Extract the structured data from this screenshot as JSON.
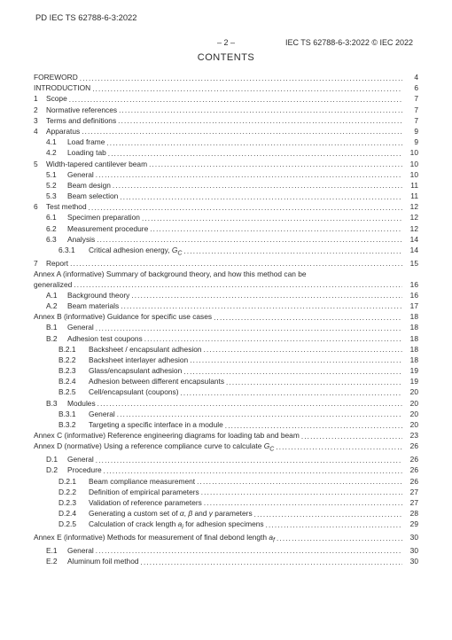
{
  "doc_id": "PD IEC TS 62788-6-3:2022",
  "header_center": "– 2 –",
  "header_right": "IEC TS 62788-6-3:2022 © IEC 2022",
  "contents_title": "CONTENTS",
  "dots": "........................................................................................................................................................................",
  "toc": [
    {
      "indent": 0,
      "num": "",
      "numClass": "",
      "title": "FOREWORD",
      "page": "4"
    },
    {
      "indent": 0,
      "num": "",
      "numClass": "",
      "title": "INTRODUCTION",
      "page": "6"
    },
    {
      "indent": 0,
      "num": "1",
      "numClass": "n1",
      "title": "Scope",
      "page": "7"
    },
    {
      "indent": 0,
      "num": "2",
      "numClass": "n1",
      "title": "Normative references",
      "page": "7"
    },
    {
      "indent": 0,
      "num": "3",
      "numClass": "n1",
      "title": "Terms and definitions",
      "page": "7"
    },
    {
      "indent": 0,
      "num": "4",
      "numClass": "n1",
      "title": "Apparatus",
      "page": "9"
    },
    {
      "indent": 1,
      "num": "4.1",
      "numClass": "n2",
      "title": "Load frame",
      "page": "9"
    },
    {
      "indent": 1,
      "num": "4.2",
      "numClass": "n2",
      "title": "Loading tab",
      "page": "10"
    },
    {
      "indent": 0,
      "num": "5",
      "numClass": "n1",
      "title": "Width-tapered cantilever beam",
      "page": "10"
    },
    {
      "indent": 1,
      "num": "5.1",
      "numClass": "n2",
      "title": "General",
      "page": "10"
    },
    {
      "indent": 1,
      "num": "5.2",
      "numClass": "n2",
      "title": "Beam design",
      "page": "11"
    },
    {
      "indent": 1,
      "num": "5.3",
      "numClass": "n2",
      "title": "Beam selection",
      "page": "11"
    },
    {
      "indent": 0,
      "num": "6",
      "numClass": "n1",
      "title": "Test method",
      "page": "12"
    },
    {
      "indent": 1,
      "num": "6.1",
      "numClass": "n2",
      "title": "Specimen preparation",
      "page": "12"
    },
    {
      "indent": 1,
      "num": "6.2",
      "numClass": "n2",
      "title": "Measurement procedure",
      "page": "12"
    },
    {
      "indent": 1,
      "num": "6.3",
      "numClass": "n2",
      "title": "Analysis",
      "page": "14"
    },
    {
      "indent": 2,
      "num": "6.3.1",
      "numClass": "n3",
      "title": "Critical adhesion energy, G_C",
      "page": "14",
      "ital": [
        "G",
        "C"
      ]
    },
    {
      "indent": 0,
      "num": "7",
      "numClass": "n1",
      "title": "Report",
      "page": "15"
    },
    {
      "indent": 0,
      "num": "",
      "numClass": "",
      "title": "Annex A (informative)  Summary of background theory, and how this method can be generalized",
      "page": "16",
      "wrap": true
    },
    {
      "indent": 1,
      "num": "A.1",
      "numClass": "n2",
      "title": "Background theory",
      "page": "16"
    },
    {
      "indent": 1,
      "num": "A.2",
      "numClass": "n2",
      "title": "Beam materials",
      "page": "17"
    },
    {
      "indent": 0,
      "num": "",
      "numClass": "",
      "title": "Annex B (informative)  Guidance for specific use cases",
      "page": "18"
    },
    {
      "indent": 1,
      "num": "B.1",
      "numClass": "n2",
      "title": "General",
      "page": "18"
    },
    {
      "indent": 1,
      "num": "B.2",
      "numClass": "n2",
      "title": "Adhesion test coupons",
      "page": "18"
    },
    {
      "indent": 2,
      "num": "B.2.1",
      "numClass": "n3",
      "title": "Backsheet / encapsulant adhesion",
      "page": "18"
    },
    {
      "indent": 2,
      "num": "B.2.2",
      "numClass": "n3",
      "title": "Backsheet interlayer adhesion",
      "page": "18"
    },
    {
      "indent": 2,
      "num": "B.2.3",
      "numClass": "n3",
      "title": "Glass/encapsulant adhesion",
      "page": "19"
    },
    {
      "indent": 2,
      "num": "B.2.4",
      "numClass": "n3",
      "title": "Adhesion between different encapsulants",
      "page": "19"
    },
    {
      "indent": 2,
      "num": "B.2.5",
      "numClass": "n3",
      "title": "Cell/encapsulant (coupons)",
      "page": "20"
    },
    {
      "indent": 1,
      "num": "B.3",
      "numClass": "n2",
      "title": "Modules",
      "page": "20"
    },
    {
      "indent": 2,
      "num": "B.3.1",
      "numClass": "n3",
      "title": "General",
      "page": "20"
    },
    {
      "indent": 2,
      "num": "B.3.2",
      "numClass": "n3",
      "title": "Targeting a specific interface in a module",
      "page": "20"
    },
    {
      "indent": 0,
      "num": "",
      "numClass": "",
      "title": "Annex C (informative)  Reference engineering diagrams for loading tab and beam",
      "page": "23"
    },
    {
      "indent": 0,
      "num": "",
      "numClass": "",
      "title": "Annex D (normative)  Using a reference compliance curve to calculate G_C",
      "page": "26",
      "ital": [
        "G",
        "C"
      ]
    },
    {
      "indent": 1,
      "num": "D.1",
      "numClass": "n2",
      "title": "General",
      "page": "26"
    },
    {
      "indent": 1,
      "num": "D.2",
      "numClass": "n2",
      "title": "Procedure",
      "page": "26"
    },
    {
      "indent": 2,
      "num": "D.2.1",
      "numClass": "n3",
      "title": "Beam compliance measurement",
      "page": "26"
    },
    {
      "indent": 2,
      "num": "D.2.2",
      "numClass": "n3",
      "title": "Definition of empirical parameters",
      "page": "27"
    },
    {
      "indent": 2,
      "num": "D.2.3",
      "numClass": "n3",
      "title": "Validation of reference parameters",
      "page": "27"
    },
    {
      "indent": 2,
      "num": "D.2.4",
      "numClass": "n3",
      "title": "Generating a custom set of α, β and γ parameters",
      "page": "28",
      "ital": [
        "α",
        "β",
        "γ"
      ]
    },
    {
      "indent": 2,
      "num": "D.2.5",
      "numClass": "n3",
      "title": "Calculation of crack length a_i for adhesion specimens",
      "page": "29",
      "ital": [
        "a",
        "i"
      ]
    },
    {
      "indent": 0,
      "num": "",
      "numClass": "",
      "title": "Annex E (informative)  Methods for measurement of final debond length a_f",
      "page": "30",
      "ital": [
        "a",
        "f"
      ]
    },
    {
      "indent": 1,
      "num": "E.1",
      "numClass": "n2",
      "title": "General",
      "page": "30"
    },
    {
      "indent": 1,
      "num": "E.2",
      "numClass": "n2",
      "title": "Aluminum foil method",
      "page": "30"
    }
  ]
}
